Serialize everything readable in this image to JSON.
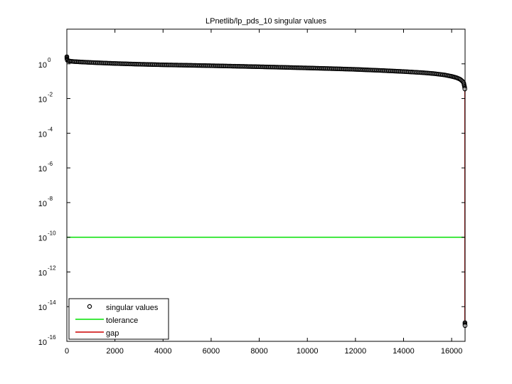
{
  "chart_data": {
    "type": "scatter",
    "title": "LPnetlib/lp_pds_10 singular values",
    "xlabel": "",
    "ylabel": "",
    "xlim": [
      0,
      16558
    ],
    "ylim": [
      1e-16,
      100.0
    ],
    "yscale": "log",
    "grid": false,
    "legend_position": "bottom-left",
    "x_ticks": [
      0,
      2000,
      4000,
      6000,
      8000,
      10000,
      12000,
      14000,
      16000
    ],
    "x_tick_labels": [
      "0",
      "2000",
      "4000",
      "6000",
      "8000",
      "10000",
      "12000",
      "14000",
      "16000"
    ],
    "y_ticks": [
      {
        "value": 1,
        "base": "10",
        "exp": "0"
      },
      {
        "value": 0.01,
        "base": "10",
        "exp": "-2"
      },
      {
        "value": 0.0001,
        "base": "10",
        "exp": "-4"
      },
      {
        "value": 1e-06,
        "base": "10",
        "exp": "-6"
      },
      {
        "value": 1e-08,
        "base": "10",
        "exp": "-8"
      },
      {
        "value": 1e-10,
        "base": "10",
        "exp": "-10"
      },
      {
        "value": 1e-12,
        "base": "10",
        "exp": "-12"
      },
      {
        "value": 1e-14,
        "base": "10",
        "exp": "-14"
      },
      {
        "value": 1e-16,
        "base": "10",
        "exp": "-16"
      }
    ],
    "series": [
      {
        "name": "singular values",
        "style": "markers",
        "color": "#000000",
        "points": [
          [
            0,
            2.6
          ],
          [
            1,
            2.0
          ],
          [
            20,
            1.6
          ],
          [
            100,
            1.45
          ],
          [
            300,
            1.35
          ],
          [
            600,
            1.28
          ],
          [
            1000,
            1.2
          ],
          [
            1500,
            1.12
          ],
          [
            2000,
            1.05
          ],
          [
            3000,
            0.95
          ],
          [
            4000,
            0.88
          ],
          [
            5000,
            0.83
          ],
          [
            6000,
            0.78
          ],
          [
            7000,
            0.73
          ],
          [
            8000,
            0.68
          ],
          [
            9000,
            0.63
          ],
          [
            10000,
            0.58
          ],
          [
            11000,
            0.53
          ],
          [
            12000,
            0.48
          ],
          [
            13000,
            0.42
          ],
          [
            14000,
            0.36
          ],
          [
            14800,
            0.31
          ],
          [
            15300,
            0.27
          ],
          [
            15700,
            0.23
          ],
          [
            16000,
            0.19
          ],
          [
            16200,
            0.16
          ],
          [
            16350,
            0.13
          ],
          [
            16450,
            0.1
          ],
          [
            16500,
            0.08
          ],
          [
            16520,
            0.06
          ],
          [
            16540,
            0.045
          ],
          [
            16550,
            0.035
          ],
          [
            16553,
            1.2e-15
          ],
          [
            16555,
            9e-16
          ],
          [
            16558,
            8e-16
          ]
        ]
      },
      {
        "name": "tolerance",
        "style": "line",
        "color": "#00e000",
        "x": [
          0,
          16558
        ],
        "y": [
          1e-10,
          1e-10
        ]
      },
      {
        "name": "gap",
        "style": "line",
        "color": "#cc0000",
        "x": [
          16552,
          16552
        ],
        "y": [
          0.035,
          1.2e-15
        ]
      }
    ]
  }
}
